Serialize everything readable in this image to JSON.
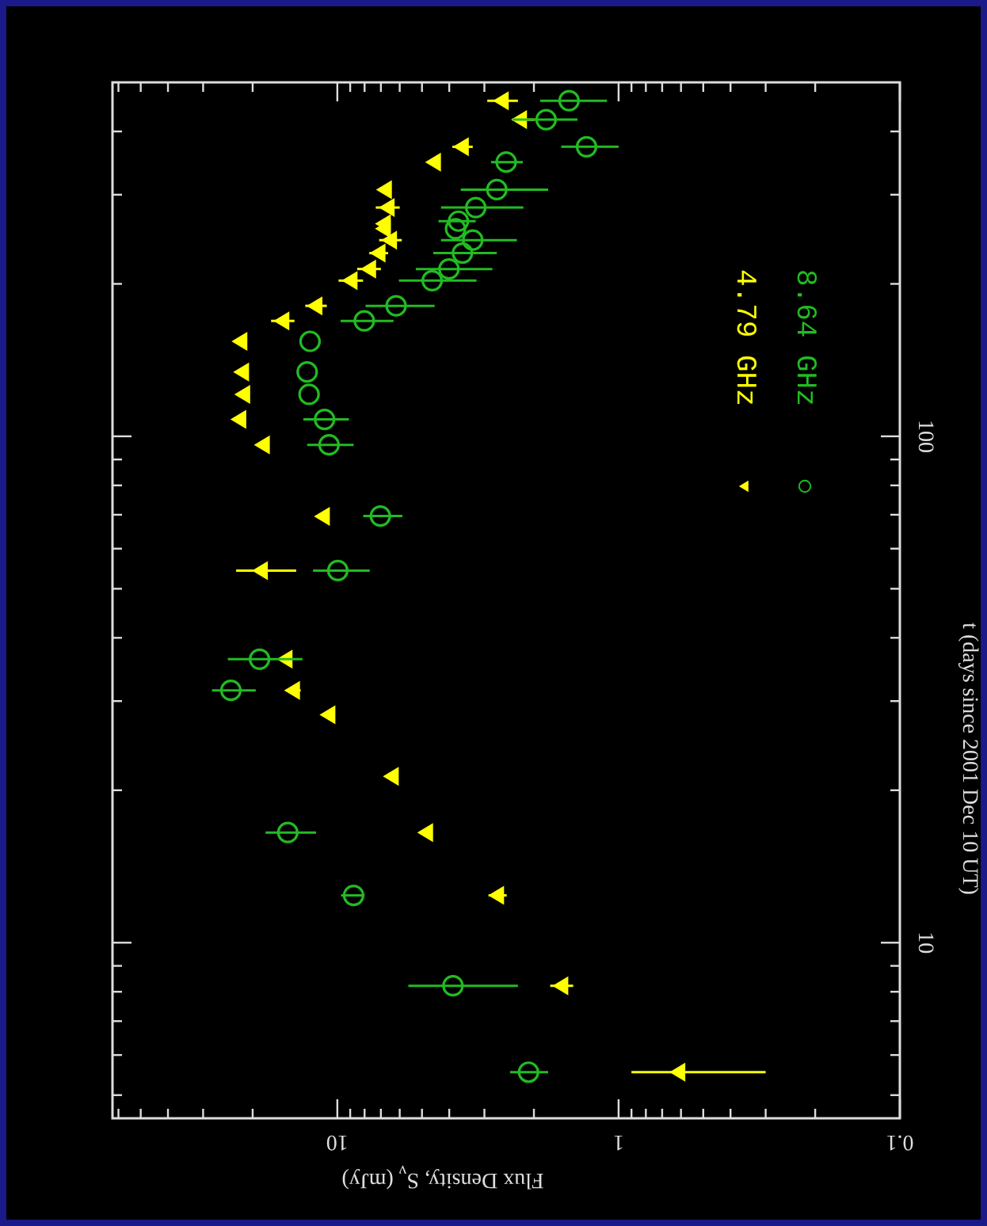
{
  "chart_data": {
    "type": "scatter",
    "xlabel": "Flux Density, S$_{ν}$ (mJy)",
    "ylabel": "t (days since 2001 Dec 10 UT)",
    "log": "xy",
    "xlim": [
      63,
      0.1
    ],
    "ylim": [
      4.5,
      500
    ],
    "yticks": [
      {
        "value": 5,
        "label": null
      },
      {
        "value": 6,
        "label": null
      },
      {
        "value": 7,
        "label": null
      },
      {
        "value": 8,
        "label": null
      },
      {
        "value": 9,
        "label": null
      },
      10,
      {
        "value": 20,
        "label": null
      },
      {
        "value": 30,
        "label": null
      },
      {
        "value": 40,
        "label": null
      },
      {
        "value": 50,
        "label": null
      },
      {
        "value": 60,
        "label": null
      },
      {
        "value": 70,
        "label": null
      },
      {
        "value": 80,
        "label": null
      },
      {
        "value": 90,
        "label": null
      },
      100,
      {
        "value": 200,
        "label": null
      },
      {
        "value": 300,
        "label": null
      },
      {
        "value": 400,
        "label": null
      }
    ],
    "xticks": [
      0.1,
      {
        "value": 0.2,
        "label": null
      },
      {
        "value": 0.3,
        "label": null
      },
      {
        "value": 0.4,
        "label": null
      },
      {
        "value": 0.5,
        "label": null
      },
      {
        "value": 0.6,
        "label": null
      },
      {
        "value": 0.7,
        "label": null
      },
      {
        "value": 0.8,
        "label": null
      },
      {
        "value": 0.9,
        "label": null
      },
      1,
      {
        "value": 2,
        "label": null
      },
      {
        "value": 3,
        "label": null
      },
      {
        "value": 4,
        "label": null
      },
      {
        "value": 5,
        "label": null
      },
      {
        "value": 6,
        "label": null
      },
      {
        "value": 7,
        "label": null
      },
      {
        "value": 8,
        "label": null
      },
      {
        "value": 9,
        "label": null
      },
      10,
      {
        "value": 20,
        "label": null
      },
      {
        "value": 30,
        "label": null
      },
      {
        "value": 40,
        "label": null
      },
      {
        "value": 50,
        "label": null
      },
      {
        "value": 60,
        "label": null
      }
    ],
    "legend": "top right",
    "series": [
      {
        "name": "4.79 GHz",
        "color": "#ffff00",
        "marker": "triangle",
        "values": [
          5.55,
          8.22,
          12.4,
          16.5,
          21.3,
          28.2,
          31.5,
          36.3,
          54.3,
          69.5,
          96.2,
          108,
          121,
          134,
          154,
          169,
          181,
          203,
          214,
          230,
          244,
          257,
          263,
          283,
          307,
          348,
          373,
          422,
          460
        ],
        "x": [
          0.61,
          1.59,
          2.69,
          4.81,
          6.37,
          10.7,
          14.3,
          15.2,
          18.6,
          11.2,
          18.3,
          22.2,
          21.5,
          21.7,
          22.0,
          15.6,
          11.9,
          8.93,
          7.67,
          7.1,
          6.46,
          6.8,
          6.8,
          6.59,
          6.74,
          4.51,
          3.59,
          2.23,
          2.59
        ],
        "xerrors": [
          [
            0.3,
            0.9
          ],
          [
            1.45,
            1.75
          ],
          [
            2.5,
            2.9
          ],
          null,
          null,
          null,
          [
            13.5,
            15.2
          ],
          null,
          [
            14.0,
            22.9
          ],
          null,
          null,
          null,
          null,
          null,
          null,
          [
            14.2,
            17.2
          ],
          [
            10.9,
            13.0
          ],
          [
            8.1,
            9.9
          ],
          [
            7.0,
            8.5
          ],
          [
            6.6,
            7.7
          ],
          [
            5.9,
            7.1
          ],
          null,
          null,
          [
            6.0,
            7.3
          ],
          null,
          null,
          [
            3.3,
            3.9
          ],
          [
            1.99,
            2.38
          ],
          [
            2.28,
            2.93
          ]
        ]
      },
      {
        "name": "8.64 GHz",
        "color": "#22bb22",
        "marker": "circle",
        "values": [
          5.55,
          8.22,
          12.4,
          16.5,
          31.5,
          36.3,
          54.3,
          69.6,
          96.2,
          108,
          121,
          134,
          154,
          169,
          181,
          203,
          214,
          230,
          244,
          257,
          266,
          283,
          307,
          348,
          373,
          422,
          460
        ],
        "x": [
          2.09,
          3.88,
          8.75,
          15.0,
          23.9,
          18.9,
          9.96,
          7.03,
          10.7,
          11.1,
          12.6,
          12.8,
          12.5,
          8.02,
          6.18,
          4.6,
          4.01,
          3.59,
          3.3,
          3.8,
          3.71,
          3.22,
          2.71,
          2.51,
          1.3,
          1.81,
          1.5
        ],
        "xerrors": [
          [
            1.78,
            2.43
          ],
          [
            2.28,
            5.59
          ],
          [
            8.0,
            9.7
          ],
          [
            11.9,
            18.0
          ],
          [
            19.5,
            27.9
          ],
          [
            13.3,
            24.5
          ],
          [
            7.67,
            12.2
          ],
          [
            5.87,
            8.09
          ],
          [
            8.75,
            12.8
          ],
          [
            9.1,
            13.2
          ],
          null,
          null,
          null,
          [
            6.31,
            9.74
          ],
          [
            4.51,
            7.94
          ],
          [
            3.2,
            6.04
          ],
          [
            2.81,
            5.26
          ],
          [
            2.71,
            4.56
          ],
          [
            2.3,
            4.28
          ],
          null,
          [
            3.22,
            4.37
          ],
          [
            2.18,
            4.28
          ],
          [
            1.78,
            3.64
          ],
          [
            2.19,
            2.84
          ],
          [
            1.0,
            1.6
          ],
          [
            1.4,
            2.38
          ],
          [
            1.1,
            1.9
          ]
        ]
      }
    ]
  }
}
